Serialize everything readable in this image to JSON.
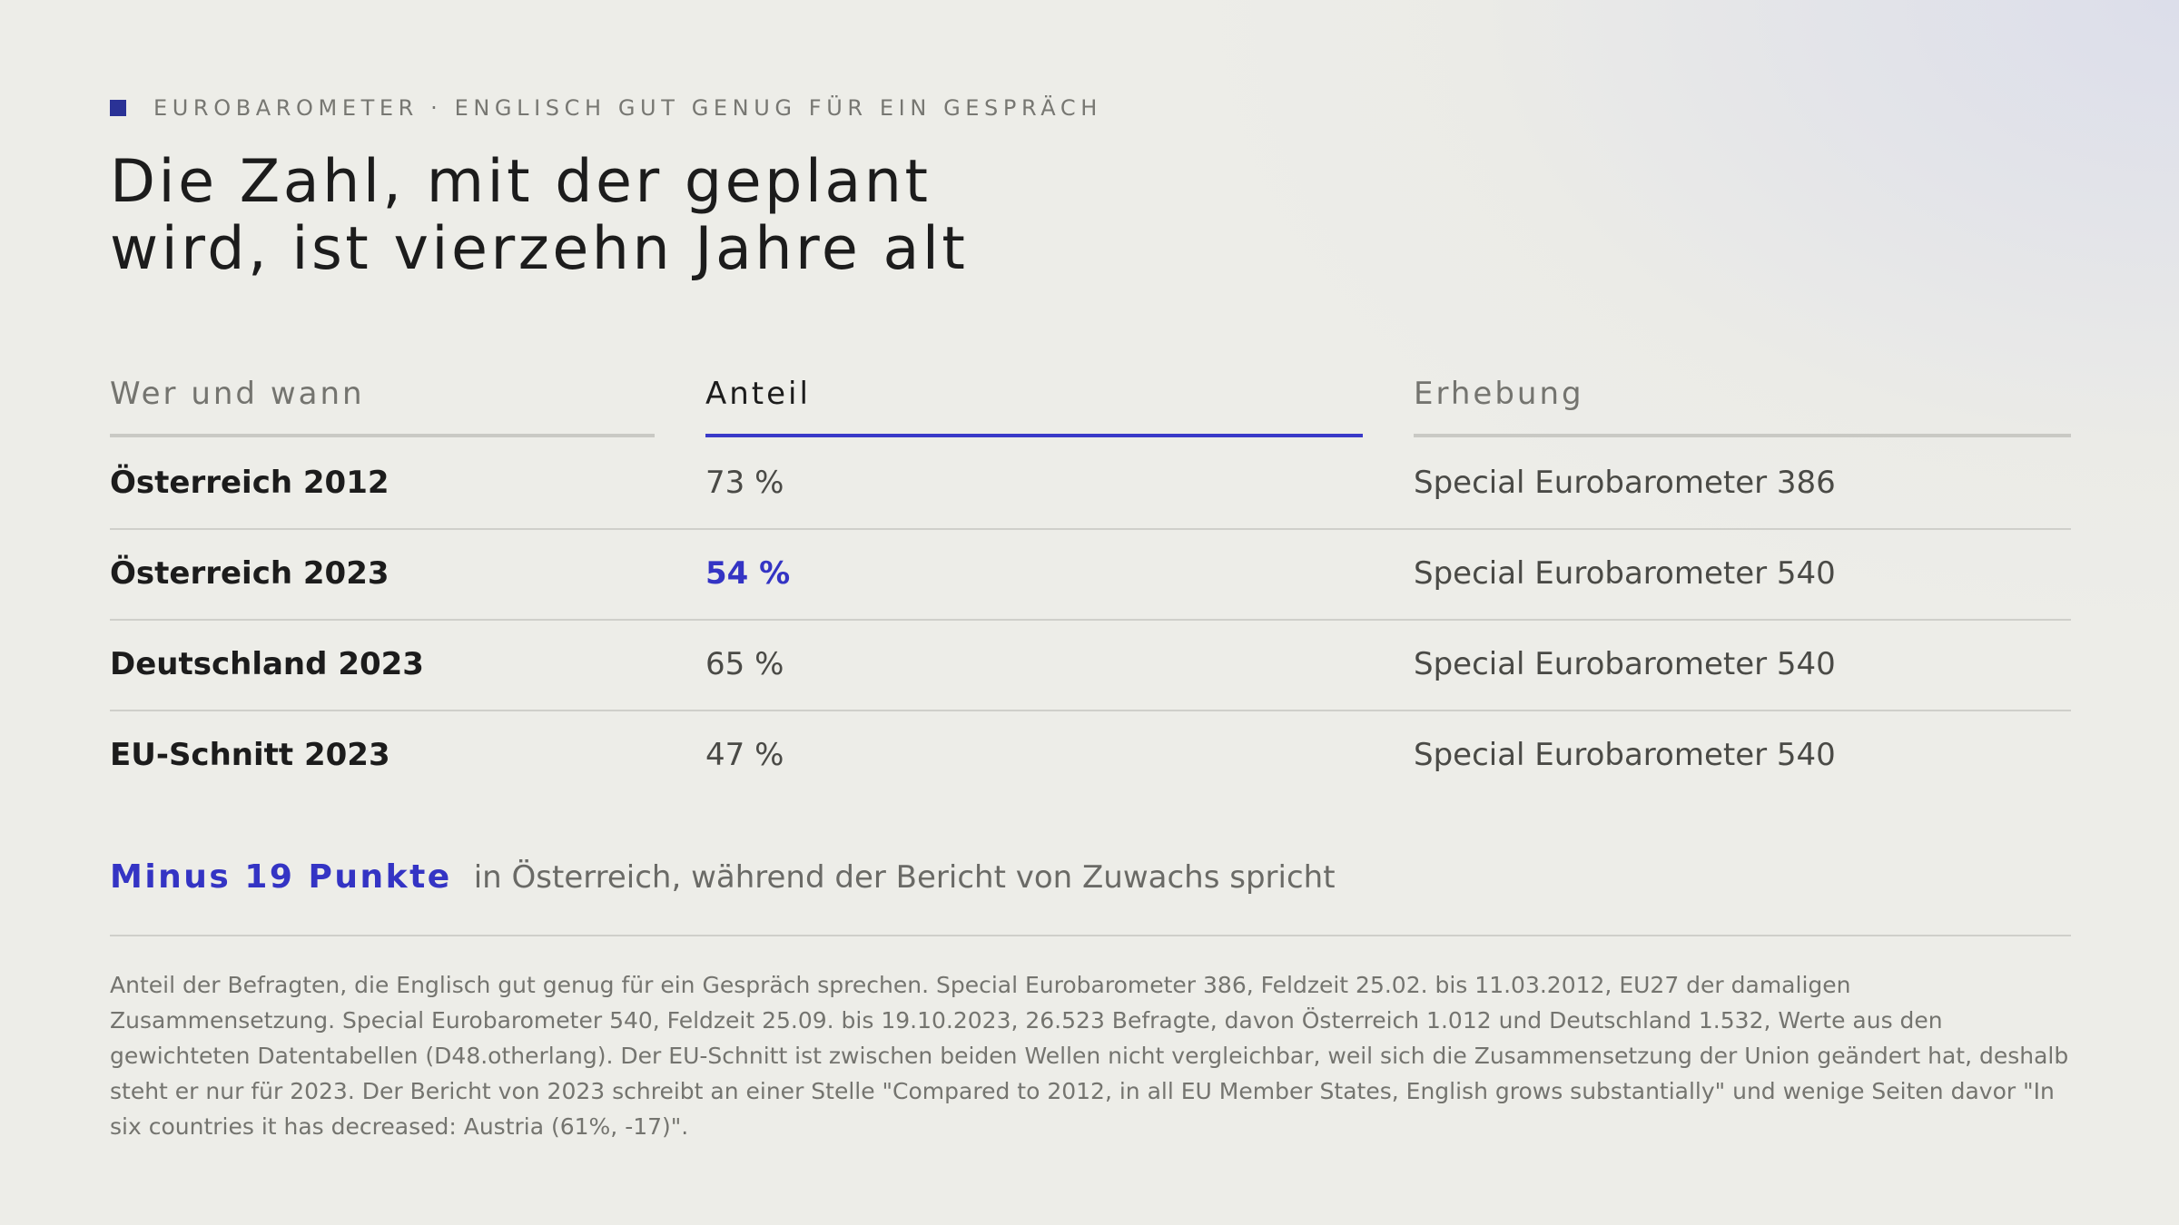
{
  "eyebrow": {
    "text": "EUROBAROMETER · ENGLISCH GUT GENUG FÜR EIN GESPRÄCH"
  },
  "title": {
    "line1": "Die Zahl, mit der geplant",
    "line2": "wird, ist vierzehn Jahre alt"
  },
  "table": {
    "headers": [
      "Wer und wann",
      "Anteil",
      "Erhebung"
    ],
    "active_header_index": 1,
    "rows": [
      {
        "who": "Österreich 2012",
        "share": "73 %",
        "survey": "Special Eurobarometer 386",
        "highlight": false
      },
      {
        "who": "Österreich 2023",
        "share": "54 %",
        "survey": "Special Eurobarometer 540",
        "highlight": true
      },
      {
        "who": "Deutschland 2023",
        "share": "65 %",
        "survey": "Special Eurobarometer 540",
        "highlight": false
      },
      {
        "who": "EU-Schnitt 2023",
        "share": "47 %",
        "survey": "Special Eurobarometer 540",
        "highlight": false
      }
    ]
  },
  "callout": {
    "strong": "Minus 19 Punkte",
    "text": "in Österreich, während der Bericht von Zuwachs spricht"
  },
  "footnote": "Anteil der Befragten, die Englisch gut genug für ein Gespräch sprechen. Special Eurobarometer 386, Feldzeit 25.02. bis 11.03.2012, EU27 der damaligen Zusammensetzung. Special Eurobarometer 540, Feldzeit 25.09. bis 19.10.2023, 26.523 Befragte, davon Österreich 1.012 und Deutschland 1.532, Werte aus den gewichteten Datentabellen (D48.otherlang). Der EU-Schnitt ist zwischen beiden Wellen nicht vergleichbar, weil sich die Zusammensetzung der Union geändert hat, deshalb steht er nur für 2023. Der Bericht von 2023 schreibt an einer Stelle \"Compared to 2012, in all EU Member States, English grows substantially\" und wenige Seiten davor \"In six countries it has decreased: Austria (61%, -17)\".",
  "colors": {
    "accent": "#3434c4",
    "eyebrow_square": "#2a3296",
    "background": "#ededE8"
  }
}
